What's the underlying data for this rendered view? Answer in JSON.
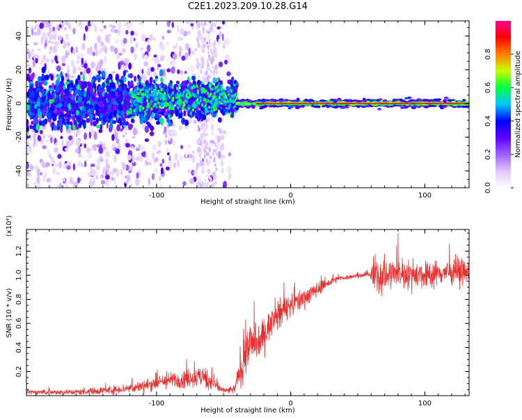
{
  "figure_title": "C2E1.2023.209.10.28.G14",
  "chart_data": [
    {
      "type": "heatmap",
      "xlabel": "Height of straight line (km)",
      "ylabel": "Frequency (Hz)",
      "xlim": [
        -197,
        133
      ],
      "ylim": [
        -50,
        49
      ],
      "xticks": [
        -100,
        0,
        100
      ],
      "yticks": [
        -40,
        -20,
        0,
        20,
        40
      ],
      "signal_band": {
        "x_start": -197,
        "x_transition": -40,
        "x_end": 133,
        "scatter_x_end": -45,
        "cluster_x": [
          -70,
          -55
        ],
        "peak_amplitude_x": [
          -25,
          133
        ],
        "center_frequency": 0
      },
      "colorbar": {
        "label": "Normalized spectral amplitude",
        "min": 0.0,
        "max": 1.0,
        "ticks": [
          0.0,
          0.2,
          0.4,
          0.6,
          0.8
        ],
        "colors": [
          "#ffffff",
          "#e0c8ff",
          "#a060ff",
          "#5a00ff",
          "#0000ff",
          "#00c8ff",
          "#00ff40",
          "#c8ff00",
          "#ff8000",
          "#ff0000",
          "#ff0090"
        ]
      }
    },
    {
      "type": "line",
      "xlabel": "Height of straight line (km)",
      "ylabel": "SNR (10 * v/v)",
      "y_multiplier": "(x10⁴)",
      "xlim": [
        -197,
        133
      ],
      "ylim": [
        0.0,
        1.38
      ],
      "xticks": [
        -100,
        0,
        100
      ],
      "yticks": [
        0.2,
        0.4,
        0.6,
        0.8,
        1.0,
        1.2
      ],
      "color": "#e83030",
      "x": [
        -197,
        -160,
        -130,
        -110,
        -95,
        -80,
        -65,
        -50,
        -42,
        -36,
        -30,
        -25,
        -15,
        -5,
        5,
        15,
        25,
        35,
        45,
        55,
        59,
        61,
        70,
        80,
        90,
        100,
        110,
        120,
        133
      ],
      "y": [
        0.03,
        0.03,
        0.05,
        0.08,
        0.12,
        0.14,
        0.16,
        0.04,
        0.05,
        0.28,
        0.45,
        0.42,
        0.6,
        0.72,
        0.78,
        0.85,
        0.92,
        0.97,
        0.99,
        1.0,
        1.01,
        1.0,
        1.0,
        1.02,
        1.01,
        1.0,
        1.02,
        1.03,
        1.02
      ],
      "noise": [
        0.015,
        0.02,
        0.03,
        0.04,
        0.05,
        0.06,
        0.08,
        0.02,
        0.03,
        0.16,
        0.16,
        0.12,
        0.1,
        0.09,
        0.08,
        0.06,
        0.04,
        0.02,
        0.015,
        0.015,
        0.015,
        0.14,
        0.12,
        0.1,
        0.1,
        0.1,
        0.09,
        0.08,
        0.08
      ]
    }
  ]
}
